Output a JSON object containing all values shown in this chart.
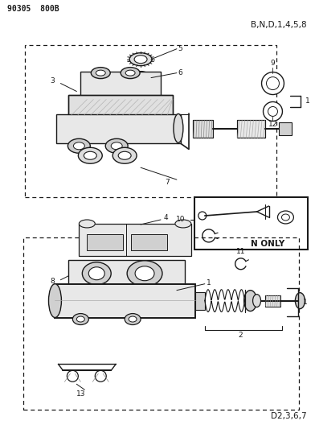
{
  "title_left": "90305  800B",
  "title_right_top": "B,N,D,1,4,5,8",
  "title_right_bottom": "D2,3,6,7",
  "n_only_label": "N ONLY",
  "fig_width": 3.92,
  "fig_height": 5.33,
  "bg_color": "#ffffff",
  "lc": "#1a1a1a"
}
